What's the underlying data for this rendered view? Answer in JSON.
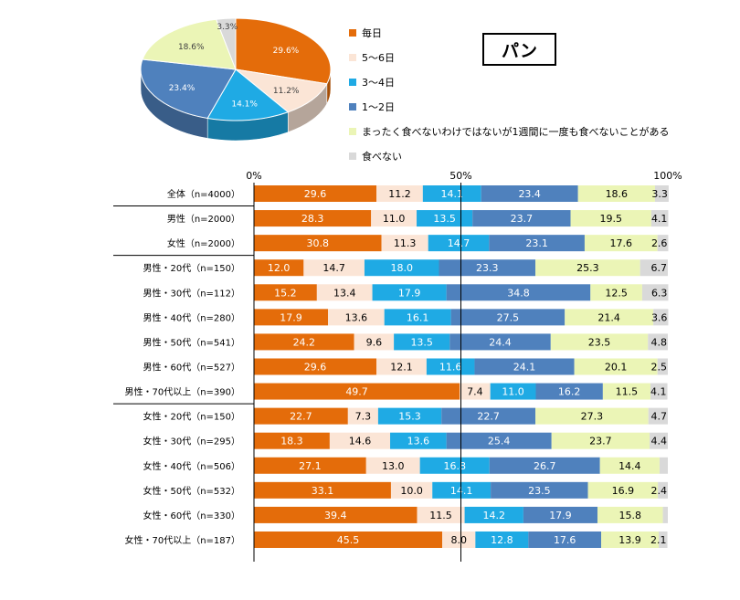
{
  "chart_data": [
    {
      "type": "pie",
      "slices": [
        {
          "name": "毎日",
          "value": 29.6,
          "label": "29.6%",
          "color": "#E46C0A"
        },
        {
          "name": "5～6日",
          "value": 11.2,
          "label": "11.2%",
          "color": "#FBE5D6"
        },
        {
          "name": "3～4日",
          "value": 14.1,
          "label": "14.1%",
          "color": "#1FAAE4"
        },
        {
          "name": "1～2日",
          "value": 23.4,
          "label": "23.4%",
          "color": "#4F81BD"
        },
        {
          "name": "まったく食べないわけではないが1週間に一度も食べないことがある",
          "value": 18.6,
          "label": "18.6%",
          "color": "#EBF5B6"
        },
        {
          "name": "食べない",
          "value": 3.3,
          "label": "3.3%",
          "color": "#D9D9D9"
        }
      ]
    },
    {
      "type": "bar",
      "orientation": "horizontal",
      "stacked": true,
      "title": "パン",
      "x_ticks": [
        "0%",
        "50%",
        "100%"
      ],
      "xlim": [
        0,
        100
      ],
      "series": [
        {
          "name": "毎日",
          "color": "#E46C0A"
        },
        {
          "name": "5～6日",
          "color": "#FBE5D6"
        },
        {
          "name": "3～4日",
          "color": "#1FAAE4"
        },
        {
          "name": "1～2日",
          "color": "#4F81BD"
        },
        {
          "name": "まったく食べないわけではないが1週間に一度も食べないことがある",
          "color": "#EBF5B6"
        },
        {
          "name": "食べない",
          "color": "#D9D9D9"
        }
      ],
      "rows": [
        {
          "label": "全体（n=4000）",
          "values": [
            29.6,
            11.2,
            14.1,
            23.4,
            18.6,
            3.3
          ],
          "labels": [
            "29.6",
            "11.2",
            "14.1",
            "23.4",
            "18.6",
            "3.3"
          ]
        },
        {
          "label": "男性（n=2000）",
          "values": [
            28.3,
            11.0,
            13.5,
            23.7,
            19.5,
            4.1
          ],
          "labels": [
            "28.3",
            "11.0",
            "13.5",
            "23.7",
            "19.5",
            "4.1"
          ]
        },
        {
          "label": "女性（n=2000）",
          "values": [
            30.8,
            11.3,
            14.7,
            23.1,
            17.6,
            2.6
          ],
          "labels": [
            "30.8",
            "11.3",
            "14.7",
            "23.1",
            "17.6",
            "2.6"
          ]
        },
        {
          "label": "男性・20代（n=150）",
          "values": [
            12.0,
            14.7,
            18.0,
            23.3,
            25.3,
            6.7
          ],
          "labels": [
            "12.0",
            "14.7",
            "18.0",
            "23.3",
            "25.3",
            "6.7"
          ]
        },
        {
          "label": "男性・30代（n=112）",
          "values": [
            15.2,
            13.4,
            17.9,
            34.8,
            12.5,
            6.3
          ],
          "labels": [
            "15.2",
            "13.4",
            "17.9",
            "34.8",
            "12.5",
            "6.3"
          ]
        },
        {
          "label": "男性・40代（n=280）",
          "values": [
            17.9,
            13.6,
            16.1,
            27.5,
            21.4,
            3.6
          ],
          "labels": [
            "17.9",
            "13.6",
            "16.1",
            "27.5",
            "21.4",
            "3.6"
          ]
        },
        {
          "label": "男性・50代（n=541）",
          "values": [
            24.2,
            9.6,
            13.5,
            24.4,
            23.5,
            4.8
          ],
          "labels": [
            "24.2",
            "9.6",
            "13.5",
            "24.4",
            "23.5",
            "4.8"
          ]
        },
        {
          "label": "男性・60代（n=527）",
          "values": [
            29.6,
            12.1,
            11.6,
            24.1,
            20.1,
            2.5
          ],
          "labels": [
            "29.6",
            "12.1",
            "11.6",
            "24.1",
            "20.1",
            "2.5"
          ]
        },
        {
          "label": "男性・70代以上（n=390）",
          "values": [
            49.7,
            7.4,
            11.0,
            16.2,
            11.5,
            4.1
          ],
          "labels": [
            "49.7",
            "7.4",
            "11.0",
            "16.2",
            "11.5",
            "4.1"
          ]
        },
        {
          "label": "女性・20代（n=150）",
          "values": [
            22.7,
            7.3,
            15.3,
            22.7,
            27.3,
            4.7
          ],
          "labels": [
            "22.7",
            "7.3",
            "15.3",
            "22.7",
            "27.3",
            "4.7"
          ]
        },
        {
          "label": "女性・30代（n=295）",
          "values": [
            18.3,
            14.6,
            13.6,
            25.4,
            23.7,
            4.4
          ],
          "labels": [
            "18.3",
            "14.6",
            "13.6",
            "25.4",
            "23.7",
            "4.4"
          ]
        },
        {
          "label": "女性・40代（n=506）",
          "values": [
            27.1,
            13.0,
            16.8,
            26.7,
            14.4,
            2.0
          ],
          "labels": [
            "27.1",
            "13.0",
            "16.8",
            "26.7",
            "14.4",
            ""
          ]
        },
        {
          "label": "女性・50代（n=532）",
          "values": [
            33.1,
            10.0,
            14.1,
            23.5,
            16.9,
            2.4
          ],
          "labels": [
            "33.1",
            "10.0",
            "14.1",
            "23.5",
            "16.9",
            "2.4"
          ]
        },
        {
          "label": "女性・60代（n=330）",
          "values": [
            39.4,
            11.5,
            14.2,
            17.9,
            15.8,
            1.2
          ],
          "labels": [
            "39.4",
            "11.5",
            "14.2",
            "17.9",
            "15.8",
            ""
          ]
        },
        {
          "label": "女性・70代以上（n=187）",
          "values": [
            45.5,
            8.0,
            12.8,
            17.6,
            13.9,
            2.1
          ],
          "labels": [
            "45.5",
            "8.0",
            "12.8",
            "17.6",
            "13.9",
            "2.1"
          ]
        }
      ],
      "group_breaks_after": [
        0,
        2,
        8
      ]
    }
  ]
}
